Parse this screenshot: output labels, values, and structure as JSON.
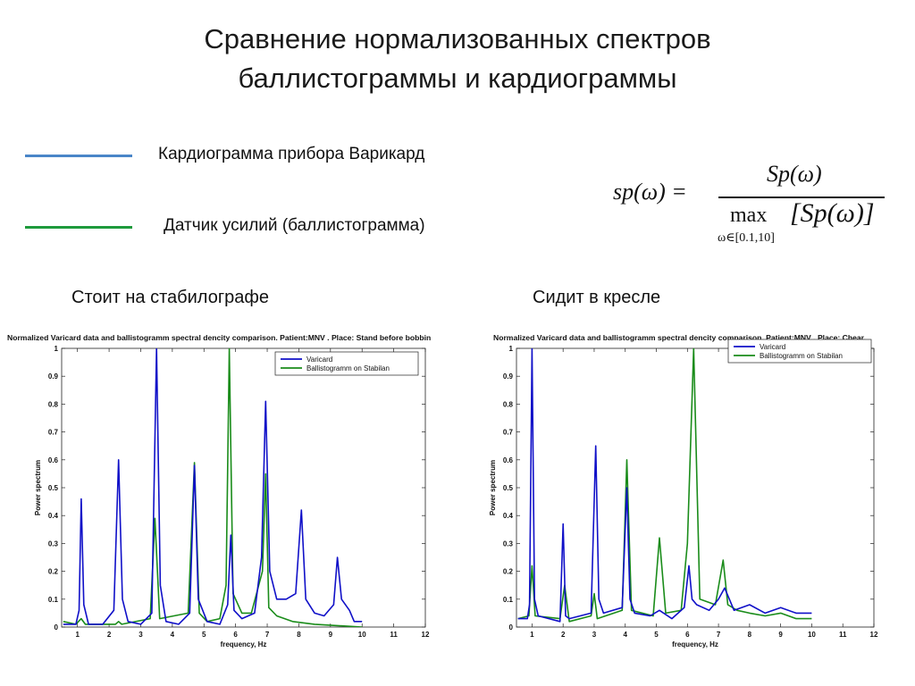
{
  "slide": {
    "title_line1": "Сравнение нормализованных спектров",
    "title_line2": "баллистограммы и кардиограммы"
  },
  "legend": {
    "blue_label": "Кардиограмма прибора Варикард",
    "green_label": "Датчик усилий (баллистограмма)",
    "blue_color": "#4a86c8",
    "green_color": "#1e9a3c"
  },
  "formula": {
    "lhs": "sp(ω) =",
    "numerator": "Sp(ω)",
    "denominator_op": "max",
    "denominator_arg": "[Sp(ω)]",
    "subscript": "ω∈[0.1,10]"
  },
  "captions": {
    "left": "Стоит на стабилографе",
    "right": "Сидит в кресле"
  },
  "chart_data": [
    {
      "type": "line",
      "title": "Normalized Varicard data and ballistogramm spectral dencity comparison. Patient:MNV . Place: Stand before bobbin",
      "xlabel": "frequency, Hz",
      "ylabel": "Power spectrum",
      "xlim": [
        0.5,
        12
      ],
      "ylim": [
        0,
        1
      ],
      "xticks": [
        1,
        2,
        3,
        4,
        5,
        6,
        7,
        8,
        9,
        10,
        11,
        12
      ],
      "yticks": [
        0,
        0.1,
        0.2,
        0.3,
        0.4,
        0.5,
        0.6,
        0.7,
        0.8,
        0.9,
        1
      ],
      "legend_position": "top-right",
      "grid": false,
      "series": [
        {
          "name": "Varicard",
          "color": "#1010c8",
          "x": [
            0.55,
            0.95,
            1.05,
            1.12,
            1.2,
            1.35,
            1.8,
            2.15,
            2.3,
            2.42,
            2.6,
            3.0,
            3.35,
            3.5,
            3.62,
            3.8,
            4.2,
            4.55,
            4.7,
            4.82,
            5.1,
            5.5,
            5.75,
            5.85,
            5.95,
            6.2,
            6.6,
            6.82,
            6.95,
            7.08,
            7.3,
            7.6,
            7.9,
            8.08,
            8.22,
            8.5,
            8.8,
            9.1,
            9.22,
            9.35,
            9.6,
            9.75,
            10.0
          ],
          "y": [
            0.01,
            0.01,
            0.06,
            0.46,
            0.08,
            0.01,
            0.01,
            0.06,
            0.6,
            0.1,
            0.02,
            0.01,
            0.05,
            1.0,
            0.15,
            0.02,
            0.01,
            0.05,
            0.58,
            0.1,
            0.02,
            0.01,
            0.08,
            0.33,
            0.06,
            0.03,
            0.05,
            0.25,
            0.81,
            0.2,
            0.1,
            0.1,
            0.12,
            0.42,
            0.1,
            0.05,
            0.04,
            0.08,
            0.25,
            0.1,
            0.06,
            0.02,
            0.02
          ]
        },
        {
          "name": "Ballistogramm on Stabilan",
          "color": "#1a8c1a",
          "x": [
            0.55,
            0.95,
            1.12,
            1.25,
            2.2,
            2.3,
            2.4,
            3.3,
            3.45,
            3.6,
            4.5,
            4.7,
            4.85,
            5.1,
            5.5,
            5.7,
            5.8,
            5.92,
            6.2,
            6.5,
            6.85,
            6.95,
            7.05,
            7.3,
            7.8,
            8.5,
            10.0
          ],
          "y": [
            0.02,
            0.01,
            0.03,
            0.01,
            0.01,
            0.02,
            0.01,
            0.03,
            0.39,
            0.03,
            0.05,
            0.59,
            0.05,
            0.02,
            0.03,
            0.15,
            1.0,
            0.12,
            0.05,
            0.05,
            0.2,
            0.55,
            0.07,
            0.04,
            0.02,
            0.01,
            0.0
          ]
        }
      ]
    },
    {
      "type": "line",
      "title": "Normalized Varicard data and ballistogramm spectral dencity comparison. Patient:MNV . Place: Chear.",
      "xlabel": "frequency, Hz",
      "ylabel": "Power spectrum",
      "xlim": [
        0.5,
        12
      ],
      "ylim": [
        0,
        1
      ],
      "xticks": [
        1,
        2,
        3,
        4,
        5,
        6,
        7,
        8,
        9,
        10,
        11,
        12
      ],
      "yticks": [
        0,
        0.1,
        0.2,
        0.3,
        0.4,
        0.5,
        0.6,
        0.7,
        0.8,
        0.9,
        1
      ],
      "legend_position": "top-right",
      "grid": false,
      "series": [
        {
          "name": "Varicard",
          "color": "#1010c8",
          "x": [
            0.55,
            0.85,
            0.92,
            1.0,
            1.08,
            1.2,
            1.9,
            2.0,
            2.08,
            2.2,
            2.9,
            3.05,
            3.15,
            3.3,
            3.9,
            4.05,
            4.15,
            4.3,
            4.8,
            5.1,
            5.5,
            5.9,
            6.05,
            6.15,
            6.3,
            6.7,
            7.0,
            7.2,
            7.5,
            8.0,
            8.5,
            9.0,
            9.5,
            10.0
          ],
          "y": [
            0.03,
            0.03,
            0.08,
            1.0,
            0.1,
            0.04,
            0.02,
            0.37,
            0.04,
            0.03,
            0.05,
            0.65,
            0.1,
            0.05,
            0.07,
            0.5,
            0.1,
            0.05,
            0.04,
            0.06,
            0.03,
            0.07,
            0.22,
            0.1,
            0.08,
            0.06,
            0.1,
            0.14,
            0.06,
            0.08,
            0.05,
            0.07,
            0.05,
            0.05
          ]
        },
        {
          "name": "Ballistogramm on Stabilan",
          "color": "#1a8c1a",
          "x": [
            0.55,
            0.9,
            1.0,
            1.1,
            1.9,
            2.05,
            2.2,
            2.9,
            3.0,
            3.1,
            3.9,
            4.05,
            4.2,
            4.9,
            5.1,
            5.3,
            5.8,
            6.0,
            6.2,
            6.4,
            6.9,
            7.15,
            7.3,
            7.6,
            8.0,
            8.5,
            9.0,
            9.5,
            10.0
          ],
          "y": [
            0.03,
            0.04,
            0.22,
            0.04,
            0.03,
            0.15,
            0.02,
            0.04,
            0.12,
            0.03,
            0.06,
            0.6,
            0.06,
            0.04,
            0.32,
            0.05,
            0.06,
            0.3,
            1.0,
            0.1,
            0.08,
            0.24,
            0.08,
            0.06,
            0.05,
            0.04,
            0.05,
            0.03,
            0.03
          ]
        }
      ]
    }
  ]
}
